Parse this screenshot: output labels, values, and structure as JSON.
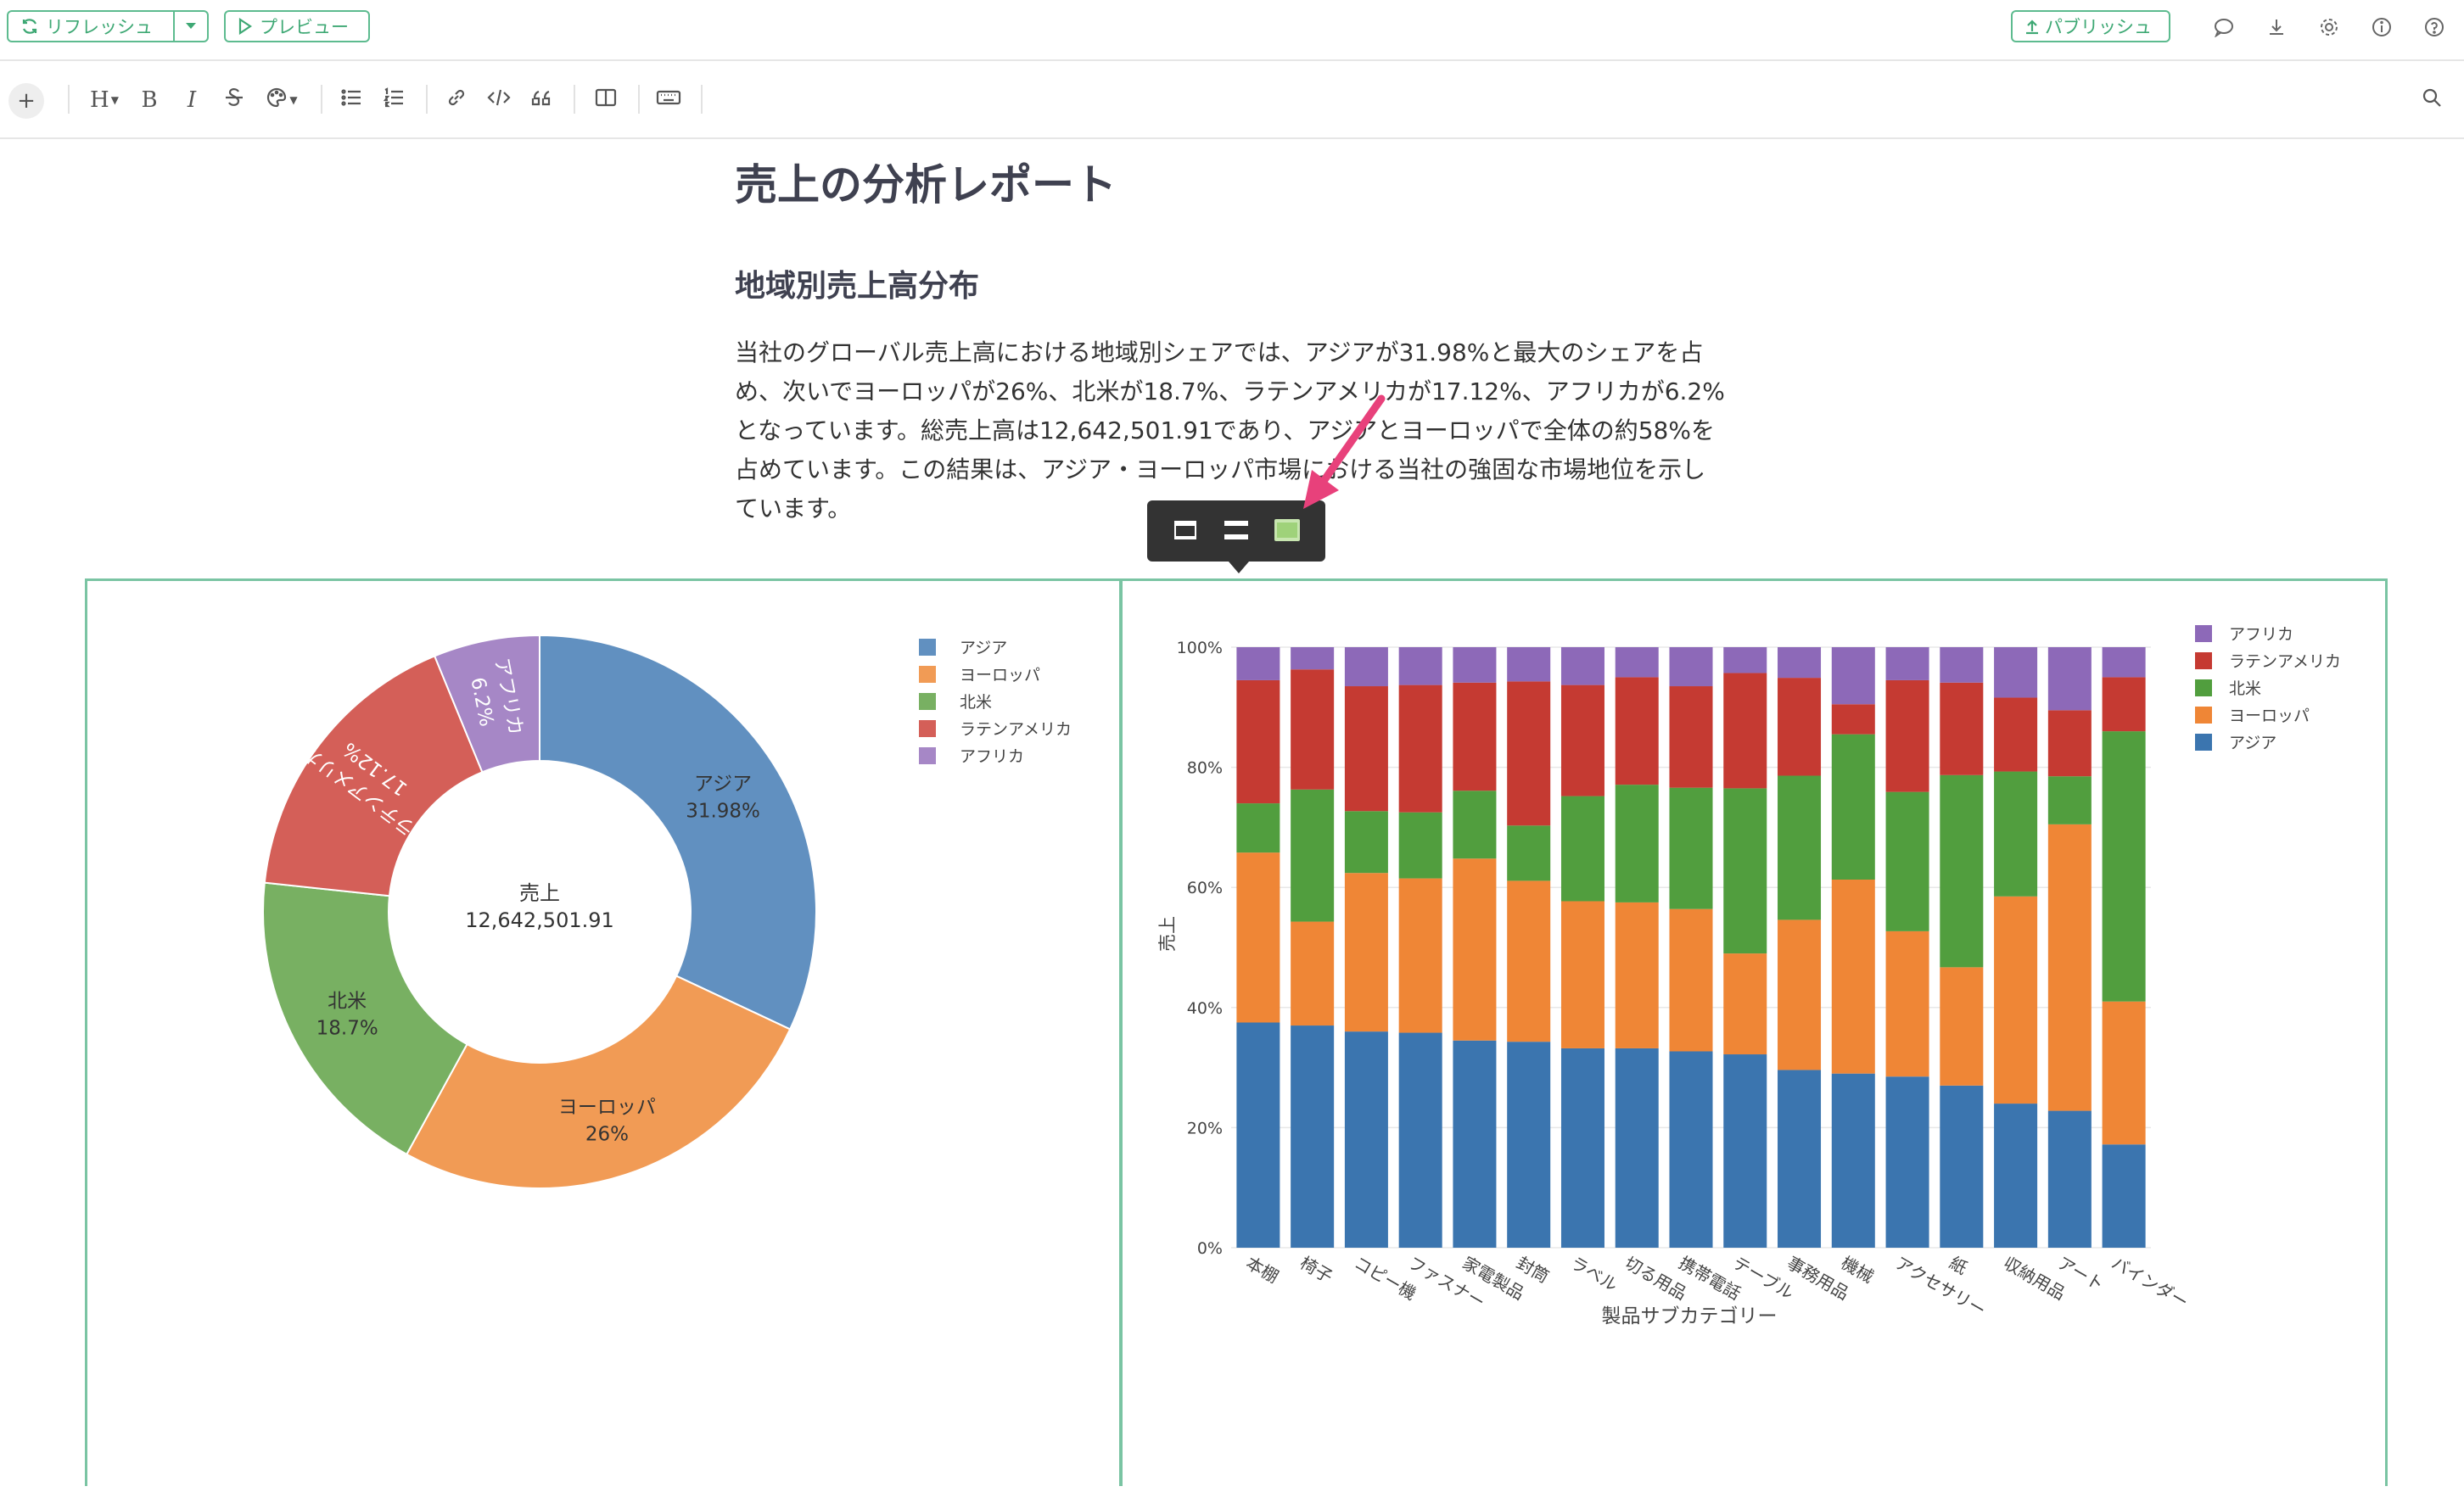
{
  "toolbar_top": {
    "refresh_label": "リフレッシュ",
    "preview_label": "プレビュー",
    "publish_label": "パブリッシュ"
  },
  "editor_toolbar": {
    "plus": "+",
    "heading": "H",
    "bold": "B",
    "italic": "I"
  },
  "document": {
    "title": "売上の分析レポート",
    "section_title": "地域別売上高分布",
    "paragraph_lines": [
      "当社のグローバル売上高における地域別シェアでは、アジアが31.98%と最大のシェアを占",
      "め、次いでヨーロッパが26%、北米が18.7%、ラテンアメリカが17.12%、アフリカが6.2%",
      "となっています。総売上高は12,642,501.91であり、アジアとヨーロッパで全体の約58%を",
      "占めています。この結果は、アジア・ヨーロッパ市場における当社の強固な市場地位を示し",
      "ています。"
    ]
  },
  "colors": {
    "accent": "#5dbb8f",
    "pie_asia": "#6190c0",
    "pie_europe": "#f19b55",
    "pie_na": "#78b062",
    "pie_latam": "#d45f58",
    "pie_africa": "#a687c6",
    "bar_asia": "#3b75af",
    "bar_europe": "#ef8636",
    "bar_na": "#519e3e",
    "bar_latam": "#c53a32",
    "bar_africa": "#8d69b8"
  },
  "chart_data": [
    {
      "type": "pie",
      "center_label": "売上",
      "center_value": "12,642,501.91",
      "slices": [
        {
          "name": "アジア",
          "value": 31.98,
          "label": "31.98%"
        },
        {
          "name": "ヨーロッパ",
          "value": 26.0,
          "label": "26%"
        },
        {
          "name": "北米",
          "value": 18.7,
          "label": "18.7%"
        },
        {
          "name": "ラテンアメリカ",
          "value": 17.12,
          "label": "17.12%"
        },
        {
          "name": "アフリカ",
          "value": 6.2,
          "label": "6.2%"
        }
      ],
      "legend": [
        "アジア",
        "ヨーロッパ",
        "北米",
        "ラテンアメリカ",
        "アフリカ"
      ],
      "legend_position": "top-right"
    },
    {
      "type": "bar",
      "stacked": "percent",
      "xlabel": "製品サブカテゴリー",
      "ylabel": "売上",
      "yticks": [
        "0%",
        "20%",
        "40%",
        "60%",
        "80%",
        "100%"
      ],
      "ylim": [
        0,
        100
      ],
      "categories": [
        "本棚",
        "椅子",
        "コピー機",
        "ファスナー",
        "家電製品",
        "封筒",
        "ラベル",
        "切る用品",
        "携帯電話",
        "テーブル",
        "事務用品",
        "機械",
        "アクセサリー",
        "紙",
        "収納用品",
        "アート",
        "バインダー"
      ],
      "series": [
        {
          "name": "アジア",
          "values": [
            37.5,
            37,
            36,
            35.8,
            34.5,
            34.3,
            33.2,
            33.2,
            32.7,
            32.2,
            29.6,
            29,
            28.5,
            27,
            24,
            22.8,
            17.2
          ]
        },
        {
          "name": "ヨーロッパ",
          "values": [
            28.3,
            17.3,
            26.4,
            25.7,
            30.3,
            26.8,
            24.5,
            24.3,
            23.7,
            16.8,
            25,
            32.3,
            24.2,
            19.7,
            34.5,
            47.7,
            23.8
          ]
        },
        {
          "name": "北米",
          "values": [
            8.2,
            22.0,
            10.3,
            11.0,
            11.3,
            9.2,
            17.5,
            19.6,
            20.2,
            27.5,
            24.0,
            24.2,
            23.2,
            32.0,
            20.8,
            8.0,
            45.0
          ]
        },
        {
          "name": "ラテンアメリカ",
          "values": [
            20.5,
            20.0,
            20.8,
            21.2,
            18.0,
            24.0,
            18.5,
            17.9,
            16.9,
            19.2,
            16.3,
            5.0,
            18.6,
            15.4,
            12.3,
            11.0,
            9.0
          ]
        },
        {
          "name": "アフリカ",
          "values": [
            5.5,
            3.7,
            6.5,
            6.3,
            5.9,
            5.7,
            6.3,
            5.0,
            6.5,
            4.3,
            5.1,
            9.5,
            5.5,
            5.9,
            8.4,
            10.5,
            5.0
          ]
        }
      ],
      "legend": [
        "アフリカ",
        "ラテンアメリカ",
        "北米",
        "ヨーロッパ",
        "アジア"
      ],
      "legend_position": "top-right"
    }
  ]
}
